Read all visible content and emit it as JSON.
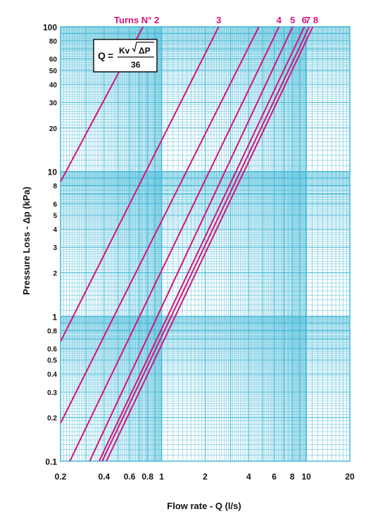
{
  "chart_data": {
    "type": "line",
    "x_scale": "log",
    "y_scale": "log",
    "xlim": [
      0.2,
      20
    ],
    "ylim": [
      0.1,
      100
    ],
    "xlabel": "Flow rate - Q (l/s)",
    "ylabel": "Pressure Loss  - Δp (kPa)",
    "x_ticks": [
      "0.2",
      "0.4",
      "0.6",
      "0.8",
      "1",
      "2",
      "4",
      "6",
      "8",
      "10",
      "20"
    ],
    "x_tick_values": [
      0.2,
      0.4,
      0.6,
      0.8,
      1,
      2,
      4,
      6,
      8,
      10,
      20
    ],
    "y_ticks": [
      "100",
      "80",
      "60",
      "50",
      "40",
      "30",
      "20",
      "10",
      "8",
      "6",
      "5",
      "4",
      "3",
      "2",
      "1",
      "0.8",
      "0.6",
      "0.5",
      "0.4",
      "0.3",
      "0.2",
      "0.1"
    ],
    "y_tick_values": [
      100,
      80,
      60,
      50,
      40,
      30,
      20,
      10,
      8,
      6,
      5,
      4,
      3,
      2,
      1,
      0.8,
      0.6,
      0.5,
      0.4,
      0.3,
      0.2,
      0.1
    ],
    "grid": true,
    "series_title": "Turns N° 2",
    "series": [
      {
        "name": "Turns N° 2",
        "label": "Turns N° 2",
        "points": [
          [
            0.2,
            8.5
          ],
          [
            0.744,
            100
          ]
        ]
      },
      {
        "name": "3",
        "label": "3",
        "points": [
          [
            0.2,
            0.67
          ],
          [
            2.48,
            100
          ]
        ]
      },
      {
        "name": "",
        "label": "",
        "points": [
          [
            0.2,
            0.183
          ],
          [
            4.7,
            100
          ]
        ]
      },
      {
        "name": "4",
        "label": "4",
        "points": [
          [
            0.232,
            0.1
          ],
          [
            6.48,
            100
          ]
        ]
      },
      {
        "name": "5",
        "label": "5",
        "points": [
          [
            0.318,
            0.1
          ],
          [
            8.05,
            100
          ]
        ]
      },
      {
        "name": "6",
        "label": "6",
        "points": [
          [
            0.37,
            0.1
          ],
          [
            9.7,
            100
          ]
        ]
      },
      {
        "name": "7",
        "label": "7",
        "points": [
          [
            0.388,
            0.1
          ],
          [
            10.5,
            100
          ]
        ]
      },
      {
        "name": "8",
        "label": "8",
        "points": [
          [
            0.415,
            0.1
          ],
          [
            11.1,
            100
          ]
        ]
      }
    ],
    "formula": {
      "lhs": "Q",
      "eq": "=",
      "kv": "Kv",
      "radicand": "ΔP",
      "denominator": "36"
    }
  },
  "colors": {
    "grid": "#3fb7d6",
    "curve": "#d4147b",
    "text": "#111111",
    "background": "#ffffff"
  }
}
